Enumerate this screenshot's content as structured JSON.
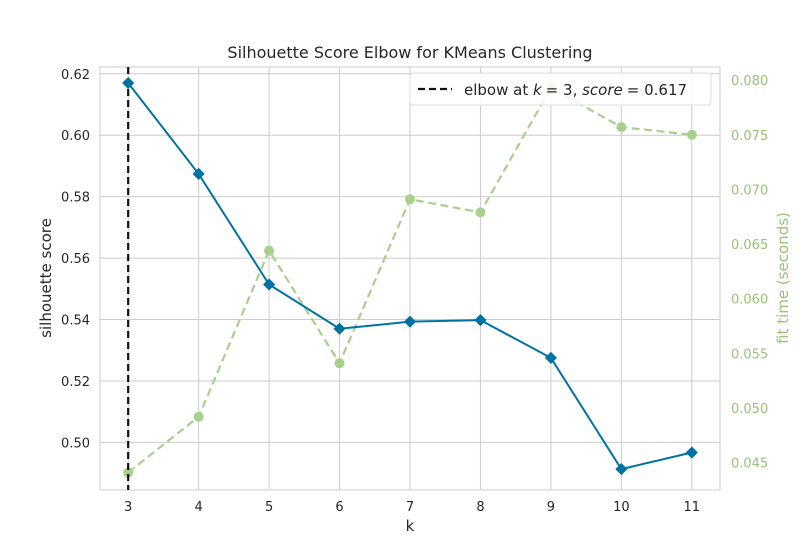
{
  "chart_data": {
    "type": "line",
    "title": "Silhouette Score Elbow for KMeans Clustering",
    "xlabel": "k",
    "ylabel": "silhouette score",
    "y2label": "fit time (seconds)",
    "x": [
      3,
      4,
      5,
      6,
      7,
      8,
      9,
      10,
      11
    ],
    "xlim": [
      2.6,
      11.4
    ],
    "ylim": [
      0.4845,
      0.6222
    ],
    "y2lim": [
      0.0425,
      0.0812
    ],
    "yticks": [
      "0.50",
      "0.52",
      "0.54",
      "0.56",
      "0.58",
      "0.60",
      "0.62"
    ],
    "y2ticks": [
      "0.045",
      "0.050",
      "0.055",
      "0.060",
      "0.065",
      "0.070",
      "0.075",
      "0.080"
    ],
    "grid": true,
    "legend_position": "top-right",
    "series": [
      {
        "name": "silhouette score",
        "axis": "left",
        "color": "#0072a2",
        "marker": "diamond",
        "values": [
          0.617,
          0.5874,
          0.5514,
          0.537,
          0.5393,
          0.5398,
          0.5275,
          0.4913,
          0.4967
        ]
      },
      {
        "name": "fit time (seconds)",
        "axis": "right",
        "color": "#a8d08d",
        "marker": "circle",
        "linestyle": "dashed",
        "values": [
          0.0441,
          0.0492,
          0.0644,
          0.0541,
          0.0691,
          0.0679,
          0.0793,
          0.0757,
          0.075
        ]
      }
    ],
    "elbow": {
      "k": 3,
      "score": 0.617,
      "color": "#111111",
      "legend_prefix": "elbow at ",
      "legend_k": "k",
      "legend_k_value": "= 3",
      "legend_score_label": "score",
      "legend_score_value": "= 0.617"
    }
  }
}
